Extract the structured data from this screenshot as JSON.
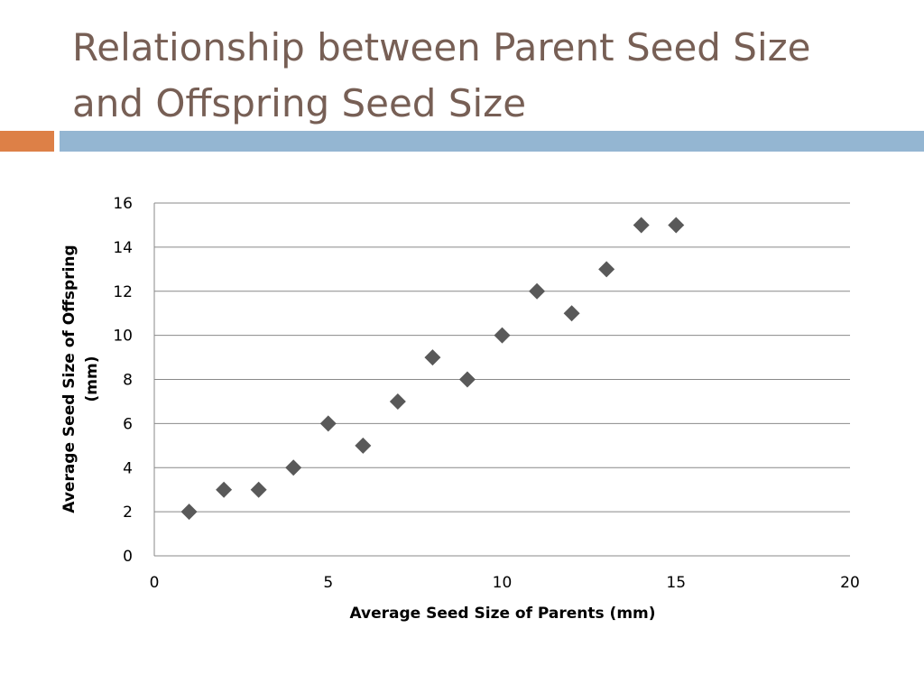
{
  "slide": {
    "title_lines": [
      "Relationship between Parent Seed Size",
      "and Offspring Seed Size"
    ]
  },
  "colors": {
    "title": "#775f55",
    "accent_orange": "#dd8047",
    "accent_blue": "#94b6d2",
    "marker": "#595959",
    "gridline": "#898989"
  },
  "chart_data": {
    "type": "scatter",
    "title": "",
    "xlabel": "Average Seed Size of Parents (mm)",
    "ylabel_lines": [
      "Average Seed Size of Offspring",
      "(mm)"
    ],
    "xlim": [
      0,
      20
    ],
    "ylim": [
      0,
      16
    ],
    "xticks": [
      0,
      5,
      10,
      15,
      20
    ],
    "yticks": [
      0,
      2,
      4,
      6,
      8,
      10,
      12,
      14,
      16
    ],
    "grid": "horizontal",
    "legend": "none",
    "marker": "diamond",
    "points": [
      {
        "x": 1,
        "y": 2
      },
      {
        "x": 2,
        "y": 3
      },
      {
        "x": 3,
        "y": 3
      },
      {
        "x": 4,
        "y": 4
      },
      {
        "x": 5,
        "y": 6
      },
      {
        "x": 6,
        "y": 5
      },
      {
        "x": 7,
        "y": 7
      },
      {
        "x": 8,
        "y": 9
      },
      {
        "x": 9,
        "y": 8
      },
      {
        "x": 10,
        "y": 10
      },
      {
        "x": 11,
        "y": 12
      },
      {
        "x": 12,
        "y": 11
      },
      {
        "x": 13,
        "y": 13
      },
      {
        "x": 14,
        "y": 15
      },
      {
        "x": 15,
        "y": 15
      }
    ]
  }
}
